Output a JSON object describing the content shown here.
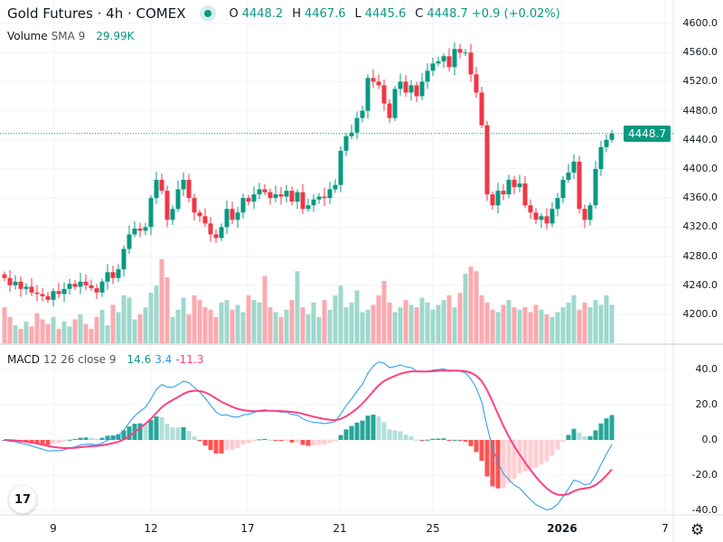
{
  "header": {
    "symbol": "Gold Futures · 4h · COMEX",
    "open_label": "O",
    "open": "4448.2",
    "high_label": "H",
    "high": "4467.6",
    "low_label": "L",
    "low": "4445.6",
    "close_label": "C",
    "close": "4448.7",
    "change": "+0.9 (+0.02%)"
  },
  "volume": {
    "label": "Volume",
    "sma": "SMA 9",
    "value": "29.99K"
  },
  "macd": {
    "label": "MACD",
    "params": "12 26 close 9",
    "hist": "14.6",
    "macd": "3.4",
    "signal": "-11.3",
    "axis": [
      "40.0",
      "20.0",
      "0.0",
      "-20.0",
      "-40.0"
    ]
  },
  "price_axis": [
    "4600.0",
    "4560.0",
    "4520.0",
    "4480.0",
    "4440.0",
    "4400.0",
    "4360.0",
    "4320.0",
    "4280.0",
    "4240.0",
    "4200.0"
  ],
  "last_price": "4448.7",
  "time_axis": [
    {
      "label": "9"
    },
    {
      "label": "12"
    },
    {
      "label": "17"
    },
    {
      "label": "21"
    },
    {
      "label": "25"
    },
    {
      "label": "2026",
      "bold": true
    },
    {
      "label": "7"
    }
  ],
  "colors": {
    "up": "#089981",
    "down": "#f23645",
    "macd": "#2962ff",
    "signal": "#ff4081"
  },
  "chart_data": {
    "type": "candlestick",
    "ylim": [
      4180,
      4610
    ],
    "closes": [
      4250,
      4240,
      4245,
      4235,
      4238,
      4230,
      4228,
      4225,
      4220,
      4232,
      4228,
      4235,
      4242,
      4238,
      4245,
      4240,
      4236,
      4230,
      4245,
      4258,
      4250,
      4262,
      4290,
      4310,
      4318,
      4315,
      4320,
      4360,
      4385,
      4370,
      4330,
      4345,
      4372,
      4385,
      4360,
      4340,
      4335,
      4325,
      4310,
      4305,
      4320,
      4345,
      4330,
      4340,
      4360,
      4355,
      4365,
      4372,
      4368,
      4360,
      4365,
      4362,
      4370,
      4355,
      4368,
      4345,
      4350,
      4358,
      4362,
      4360,
      4372,
      4378,
      4425,
      4445,
      4450,
      4470,
      4480,
      4525,
      4520,
      4515,
      4490,
      4470,
      4510,
      4520,
      4505,
      4515,
      4500,
      4520,
      4535,
      4545,
      4548,
      4555,
      4540,
      4565,
      4560,
      4560,
      4530,
      4505,
      4460,
      4365,
      4350,
      4370,
      4365,
      4385,
      4375,
      4380,
      4350,
      4340,
      4330,
      4335,
      4325,
      4345,
      4360,
      4385,
      4395,
      4410,
      4345,
      4330,
      4350,
      4400,
      4430,
      4440,
      4448.7
    ],
    "volumes": [
      30,
      22,
      15,
      12,
      18,
      14,
      25,
      20,
      16,
      22,
      12,
      18,
      14,
      20,
      24,
      16,
      12,
      22,
      28,
      15,
      32,
      26,
      40,
      38,
      20,
      24,
      30,
      42,
      48,
      70,
      55,
      22,
      28,
      38,
      24,
      40,
      36,
      30,
      28,
      22,
      34,
      36,
      28,
      32,
      26,
      40,
      36,
      34,
      56,
      30,
      26,
      22,
      28,
      36,
      60,
      30,
      24,
      34,
      22,
      36,
      28,
      40,
      48,
      30,
      34,
      44,
      26,
      28,
      32,
      40,
      52,
      34,
      26,
      30,
      36,
      32,
      30,
      38,
      34,
      28,
      32,
      36,
      40,
      30,
      42,
      58,
      64,
      60,
      40,
      34,
      28,
      26,
      32,
      36,
      30,
      28,
      30,
      26,
      32,
      28,
      24,
      22,
      26,
      30,
      34,
      40,
      28,
      34,
      30,
      36,
      32,
      40,
      32
    ]
  }
}
